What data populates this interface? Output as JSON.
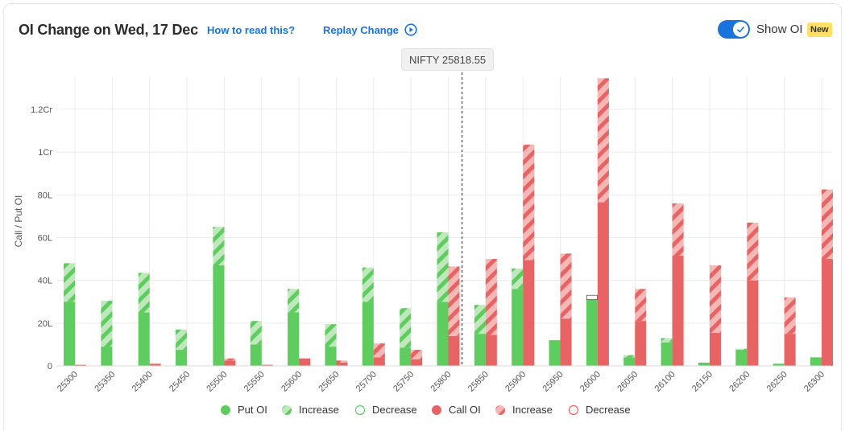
{
  "header": {
    "title": "OI Change on Wed, 17 Dec",
    "how_to_read": "How to read this?",
    "replay_label": "Replay Change",
    "show_oi_label": "Show OI",
    "badge": "New"
  },
  "tooltip": {
    "label": "NIFTY 25818.55"
  },
  "colors": {
    "put": "#5fcc60",
    "put_light": "#a9e3a6",
    "call": "#e86464",
    "call_light": "#f2a6a4",
    "grid": "#ececec",
    "accent": "#1a73d9"
  },
  "legend": {
    "put_oi": "Put OI",
    "put_increase": "Increase",
    "put_decrease": "Decrease",
    "call_oi": "Call OI",
    "call_increase": "Increase",
    "call_decrease": "Decrease"
  },
  "chart_data": {
    "type": "bar",
    "title": "",
    "xlabel": "",
    "ylabel": "Call / Put OI",
    "ylim": [
      0,
      135
    ],
    "y_unit": "Lakh",
    "yticks": [
      {
        "value": 0,
        "label": "0"
      },
      {
        "value": 20,
        "label": "20L"
      },
      {
        "value": 40,
        "label": "40L"
      },
      {
        "value": 60,
        "label": "60L"
      },
      {
        "value": 80,
        "label": "80L"
      },
      {
        "value": 100,
        "label": "1Cr"
      },
      {
        "value": 120,
        "label": "1.2Cr"
      }
    ],
    "grid": true,
    "legend_position": "bottom",
    "spot_marker": {
      "label": "NIFTY 25818.55",
      "value": 25818.55
    },
    "categories": [
      "25300",
      "25350",
      "25400",
      "25450",
      "25500",
      "25550",
      "25600",
      "25650",
      "25700",
      "25750",
      "25800",
      "25850",
      "25900",
      "25950",
      "26000",
      "26050",
      "26100",
      "26150",
      "26200",
      "26250",
      "26300"
    ],
    "series": [
      {
        "name": "Put OI",
        "values": [
          30,
          9,
          25,
          7.5,
          47,
          10,
          25,
          9,
          30,
          8.5,
          30,
          15,
          36,
          12,
          31,
          4,
          11,
          1.5,
          7.5,
          1,
          4
        ]
      },
      {
        "name": "Increase",
        "values": [
          18,
          21.5,
          18.5,
          9.5,
          18,
          11,
          11,
          10.5,
          16,
          18.5,
          32.5,
          13.5,
          9.5,
          0,
          0,
          1,
          2,
          0,
          0.5,
          0,
          0
        ]
      },
      {
        "name": "Decrease",
        "values": [
          0,
          0,
          0,
          0,
          0,
          0,
          0,
          0,
          0,
          0,
          0,
          0,
          0,
          0,
          2,
          0,
          0,
          0,
          0,
          0,
          0
        ]
      },
      {
        "name": "Call OI",
        "values": [
          0.5,
          0,
          1,
          0,
          2.5,
          0.5,
          3.5,
          1.5,
          4,
          3,
          14,
          14.5,
          49.5,
          22,
          76.5,
          21,
          51.5,
          15.5,
          40,
          15,
          50
        ]
      },
      {
        "name": "Increase",
        "values": [
          0,
          0,
          0,
          0,
          1,
          0,
          0,
          1,
          6.5,
          4.5,
          32.5,
          35.5,
          54,
          30.5,
          58,
          15,
          24.5,
          31.5,
          27,
          17,
          32.5
        ]
      },
      {
        "name": "Decrease",
        "values": [
          0,
          0,
          0,
          0,
          0,
          0,
          0,
          0,
          0,
          0,
          0,
          0,
          0,
          0,
          0,
          0,
          0,
          0,
          0,
          0,
          0
        ]
      }
    ]
  }
}
